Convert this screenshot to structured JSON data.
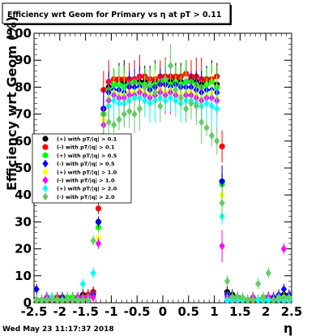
{
  "chart_data": {
    "type": "scatter",
    "title": "Efficiency wrt Geom for Primary vs   η at pT > 0.11",
    "xlabel": "η",
    "ylabel": "Efficiency wrt Geom (%)",
    "xlim": [
      -2.5,
      2.5
    ],
    "ylim": [
      0,
      100
    ],
    "grid": false,
    "legend_position": "left",
    "x_ticks": [
      "-2.5",
      "-2",
      "-1.5",
      "-1",
      "-0.5",
      "0",
      "0.5",
      "1",
      "1.5",
      "2",
      "2.5"
    ],
    "y_ticks": [
      "0",
      "10",
      "20",
      "30",
      "40",
      "50",
      "60",
      "70",
      "80",
      "90",
      "100"
    ],
    "x": [
      -2.45,
      -2.35,
      -2.25,
      -2.15,
      -2.05,
      -1.95,
      -1.85,
      -1.75,
      -1.65,
      -1.55,
      -1.45,
      -1.35,
      -1.25,
      -1.15,
      -1.05,
      -0.95,
      -0.85,
      -0.75,
      -0.65,
      -0.55,
      -0.45,
      -0.35,
      -0.25,
      -0.15,
      -0.05,
      0.05,
      0.15,
      0.25,
      0.35,
      0.45,
      0.55,
      0.65,
      0.75,
      0.85,
      0.95,
      1.05,
      1.15,
      1.25,
      1.35,
      1.45,
      1.55,
      1.65,
      1.75,
      1.85,
      1.95,
      2.05,
      2.15,
      2.25,
      2.35,
      2.45
    ],
    "series": [
      {
        "name": "(+) with pT/|q| > 0.1",
        "color": "#000000",
        "marker": "circle",
        "values": [
          1,
          1,
          2,
          1,
          1,
          2,
          1,
          2,
          2,
          3,
          3,
          4,
          30,
          72,
          80,
          81,
          82,
          82,
          81,
          82,
          82,
          82,
          81,
          82,
          82,
          83,
          82,
          83,
          82,
          82,
          83,
          82,
          81,
          82,
          83,
          81,
          45,
          4,
          3,
          2,
          1,
          1,
          2,
          1,
          2,
          2,
          1,
          2,
          3,
          2
        ]
      },
      {
        "name": "(-) with pT/|q| > 0.1",
        "color": "#ff0000",
        "marker": "circle",
        "values": [
          1,
          1,
          1,
          1,
          2,
          1,
          1,
          1,
          2,
          2,
          3,
          4,
          35,
          79,
          82,
          83,
          83,
          83,
          83,
          83,
          84,
          84,
          83,
          83,
          84,
          84,
          84,
          84,
          84,
          85,
          84,
          84,
          83,
          83,
          83,
          84,
          58,
          3,
          2,
          2,
          1,
          1,
          1,
          1,
          2,
          2,
          2,
          1,
          2,
          2
        ]
      },
      {
        "name": "(+) with pT/|q| > 0.5",
        "color": "#00ff00",
        "marker": "circle",
        "values": [
          1,
          1,
          2,
          2,
          1,
          1,
          2,
          2,
          1,
          2,
          2,
          3,
          28,
          70,
          79,
          81,
          81,
          80,
          81,
          82,
          81,
          81,
          80,
          81,
          82,
          82,
          81,
          82,
          81,
          82,
          82,
          81,
          80,
          81,
          82,
          80,
          44,
          3,
          2,
          2,
          1,
          1,
          2,
          1,
          2,
          1,
          1,
          2,
          2,
          2
        ]
      },
      {
        "name": "(-) with pT/|q| > 0.5",
        "color": "#0000ff",
        "marker": "diamond",
        "values": [
          5,
          1,
          2,
          1,
          1,
          2,
          1,
          1,
          2,
          2,
          2,
          3,
          30,
          72,
          78,
          79,
          79,
          78,
          80,
          80,
          80,
          80,
          79,
          80,
          81,
          81,
          80,
          81,
          80,
          80,
          80,
          79,
          78,
          79,
          79,
          78,
          45,
          3,
          2,
          2,
          1,
          1,
          2,
          1,
          1,
          2,
          2,
          3,
          5,
          3
        ]
      },
      {
        "name": "(+) with pT/|q| > 1.0",
        "color": "#ffff00",
        "marker": "diamond",
        "values": [
          1,
          1,
          1,
          1,
          1,
          1,
          1,
          1,
          1,
          1,
          2,
          2,
          24,
          68,
          76,
          78,
          77,
          77,
          78,
          78,
          79,
          78,
          77,
          78,
          79,
          78,
          79,
          78,
          77,
          78,
          78,
          77,
          76,
          77,
          78,
          76,
          40,
          2,
          1,
          1,
          1,
          1,
          2,
          1,
          1,
          1,
          1,
          2,
          2,
          1
        ]
      },
      {
        "name": "(-) with pT/|q| > 1.0",
        "color": "#ff00ff",
        "marker": "diamond",
        "values": [
          1,
          1,
          2,
          1,
          1,
          1,
          1,
          1,
          2,
          2,
          2,
          2,
          22,
          66,
          75,
          77,
          76,
          76,
          77,
          77,
          78,
          77,
          76,
          77,
          78,
          77,
          78,
          77,
          76,
          77,
          77,
          76,
          75,
          76,
          76,
          75,
          21,
          2,
          1,
          1,
          1,
          1,
          2,
          1,
          1,
          2,
          1,
          2,
          20,
          2
        ]
      },
      {
        "name": "(+) with pT/|q| > 2.0",
        "color": "#00ffff",
        "marker": "diamond",
        "values": [
          1,
          1,
          1,
          2,
          1,
          1,
          1,
          1,
          1,
          7,
          1,
          11,
          40,
          60,
          73,
          75,
          74,
          74,
          75,
          76,
          76,
          75,
          74,
          75,
          76,
          75,
          76,
          75,
          74,
          75,
          75,
          74,
          73,
          74,
          73,
          72,
          32,
          1,
          1,
          1,
          1,
          1,
          1,
          1,
          1,
          1,
          1,
          1,
          1,
          1
        ]
      },
      {
        "name": "(-) with pT/|q| > 2.0",
        "color": "#66cc66",
        "marker": "diamond",
        "values": [
          1,
          1,
          1,
          1,
          1,
          1,
          1,
          1,
          1,
          1,
          1,
          23,
          42,
          62,
          67,
          66,
          68,
          70,
          71,
          70,
          72,
          80,
          81,
          78,
          73,
          83,
          88,
          79,
          76,
          72,
          74,
          73,
          67,
          65,
          62,
          60,
          37,
          8,
          2,
          2,
          2,
          1,
          1,
          7,
          2,
          11,
          1,
          2,
          2,
          2
        ]
      }
    ]
  }
}
